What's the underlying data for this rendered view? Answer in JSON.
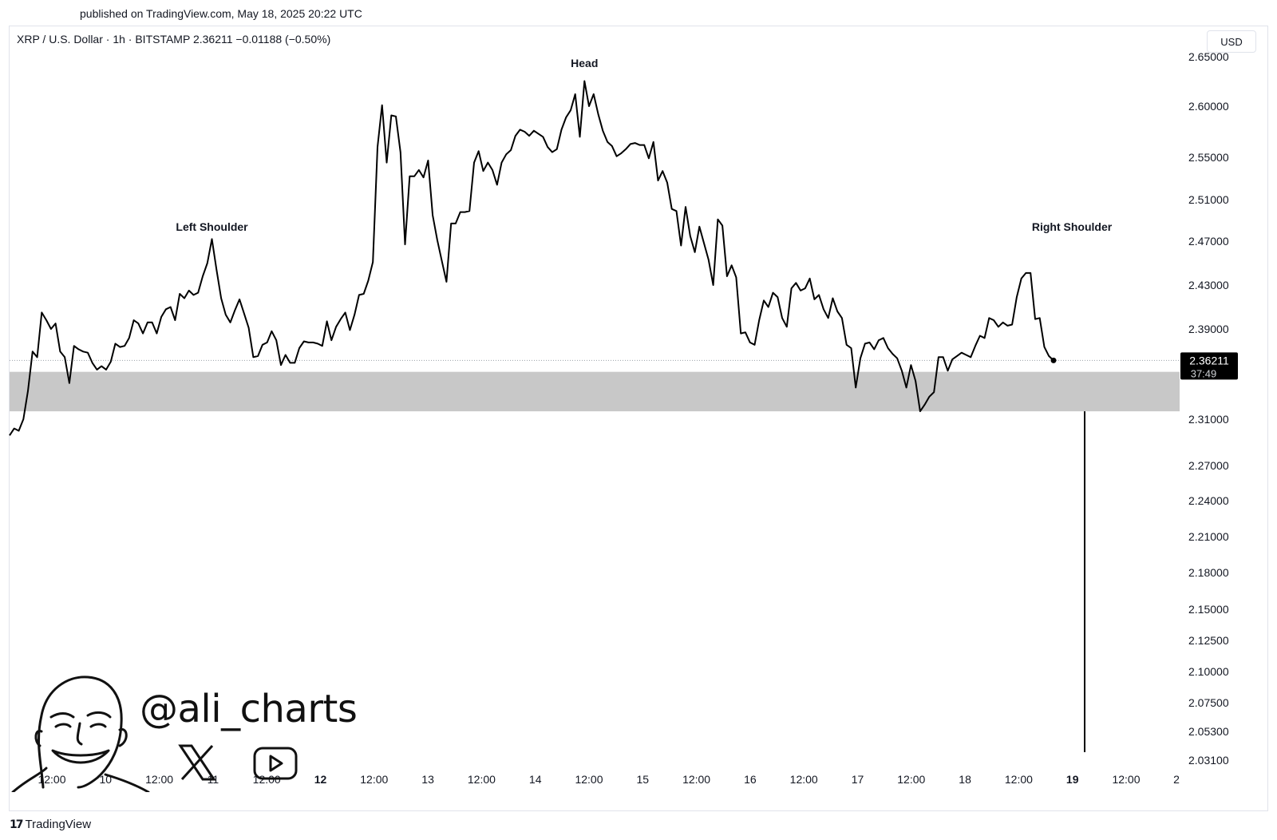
{
  "header": {
    "published": "published on TradingView.com, May 18, 2025 20:22 UTC",
    "symbol_info": "XRP / U.S. Dollar · 1h · BITSTAMP  2.36211  −0.01188 (−0.50%)",
    "currency_button": "USD"
  },
  "footer": {
    "brand": "TradingView",
    "brand_icon": "tradingview-logo-icon"
  },
  "watermark": {
    "handle": "@ali_charts",
    "icons": [
      "avatar-caricature-icon",
      "x-logo-icon",
      "youtube-play-icon"
    ]
  },
  "colors": {
    "line": "#000000",
    "zone": "#c8c8c8",
    "price_label_bg": "#000000",
    "price_label_text": "#ffffff"
  },
  "chart_data": {
    "type": "line",
    "title": "XRP / U.S. Dollar · 1h · BITSTAMP",
    "ylim": [
      2.031,
      2.65
    ],
    "y_ticks": [
      "2.65000",
      "2.60000",
      "2.55000",
      "2.51000",
      "2.47000",
      "2.43000",
      "2.39000",
      "2.31000",
      "2.27000",
      "2.24000",
      "2.21000",
      "2.18000",
      "2.15000",
      "2.12500",
      "2.10000",
      "2.07500",
      "2.05300",
      "2.03100"
    ],
    "x_ticks": [
      {
        "label": "12:00",
        "bold": false
      },
      {
        "label": "10",
        "bold": false
      },
      {
        "label": "12:00",
        "bold": false
      },
      {
        "label": "11",
        "bold": false
      },
      {
        "label": "12:00",
        "bold": false
      },
      {
        "label": "12",
        "bold": true
      },
      {
        "label": "12:00",
        "bold": false
      },
      {
        "label": "13",
        "bold": false
      },
      {
        "label": "12:00",
        "bold": false
      },
      {
        "label": "14",
        "bold": false
      },
      {
        "label": "12:00",
        "bold": false
      },
      {
        "label": "15",
        "bold": false
      },
      {
        "label": "12:00",
        "bold": false
      },
      {
        "label": "16",
        "bold": false
      },
      {
        "label": "12:00",
        "bold": false
      },
      {
        "label": "17",
        "bold": false
      },
      {
        "label": "12:00",
        "bold": false
      },
      {
        "label": "18",
        "bold": false
      },
      {
        "label": "12:00",
        "bold": false
      },
      {
        "label": "19",
        "bold": true
      },
      {
        "label": "12:00",
        "bold": false
      },
      {
        "label": "2",
        "bold": false
      }
    ],
    "series": [
      {
        "values": [
          2.296,
          2.302,
          2.3,
          2.31,
          2.335,
          2.37,
          2.365,
          2.405,
          2.398,
          2.39,
          2.395,
          2.37,
          2.365,
          2.342,
          2.375,
          2.372,
          2.37,
          2.369,
          2.36,
          2.354,
          2.357,
          2.354,
          2.361,
          2.377,
          2.374,
          2.375,
          2.382,
          2.398,
          2.395,
          2.386,
          2.396,
          2.396,
          2.386,
          2.401,
          2.408,
          2.41,
          2.398,
          2.422,
          2.418,
          2.425,
          2.421,
          2.423,
          2.438,
          2.45,
          2.472,
          2.444,
          2.418,
          2.403,
          2.396,
          2.407,
          2.417,
          2.404,
          2.391,
          2.365,
          2.366,
          2.376,
          2.378,
          2.388,
          2.38,
          2.358,
          2.367,
          2.36,
          2.36,
          2.373,
          2.379,
          2.378,
          2.378,
          2.377,
          2.375,
          2.397,
          2.38,
          2.392,
          2.399,
          2.405,
          2.389,
          2.403,
          2.421,
          2.422,
          2.434,
          2.451,
          2.56,
          2.601,
          2.545,
          2.591,
          2.59,
          2.555,
          2.467,
          2.532,
          2.532,
          2.538,
          2.531,
          2.547,
          2.495,
          2.471,
          2.452,
          2.433,
          2.487,
          2.487,
          2.498,
          2.498,
          2.499,
          2.545,
          2.556,
          2.537,
          2.545,
          2.538,
          2.524,
          2.545,
          2.553,
          2.557,
          2.571,
          2.577,
          2.575,
          2.571,
          2.576,
          2.573,
          2.57,
          2.56,
          2.555,
          2.558,
          2.577,
          2.589,
          2.596,
          2.612,
          2.57,
          2.625,
          2.6,
          2.612,
          2.592,
          2.576,
          2.565,
          2.561,
          2.551,
          2.554,
          2.558,
          2.563,
          2.564,
          2.562,
          2.562,
          2.549,
          2.565,
          2.528,
          2.537,
          2.526,
          2.501,
          2.499,
          2.466,
          2.503,
          2.475,
          2.46,
          2.484,
          2.468,
          2.453,
          2.43,
          2.491,
          2.485,
          2.438,
          2.448,
          2.437,
          2.386,
          2.387,
          2.378,
          2.376,
          2.398,
          2.416,
          2.41,
          2.423,
          2.419,
          2.4,
          2.392,
          2.427,
          2.432,
          2.425,
          2.427,
          2.436,
          2.417,
          2.421,
          2.408,
          2.4,
          2.418,
          2.406,
          2.4,
          2.376,
          2.373,
          2.338,
          2.364,
          2.377,
          2.378,
          2.372,
          2.38,
          2.382,
          2.373,
          2.368,
          2.364,
          2.353,
          2.338,
          2.358,
          2.344,
          2.317,
          2.323,
          2.33,
          2.334,
          2.365,
          2.365,
          2.353,
          2.363,
          2.366,
          2.369,
          2.367,
          2.365,
          2.375,
          2.384,
          2.382,
          2.4,
          2.398,
          2.392,
          2.396,
          2.393,
          2.394,
          2.419,
          2.436,
          2.441,
          2.441,
          2.399,
          2.4,
          2.374,
          2.366,
          2.36211
        ]
      }
    ],
    "last_price": {
      "value": "2.36211",
      "countdown": "37:49"
    },
    "zone": {
      "y_top": 2.352,
      "y_bottom": 2.317
    },
    "projection": {
      "from": 2.317,
      "to": 2.031
    },
    "annotations": [
      {
        "text": "Left Shoulder",
        "at_index": 44
      },
      {
        "text": "Head",
        "at_index": 125
      },
      {
        "text": "Right Shoulder",
        "at_index": 231
      }
    ],
    "grid": false
  }
}
